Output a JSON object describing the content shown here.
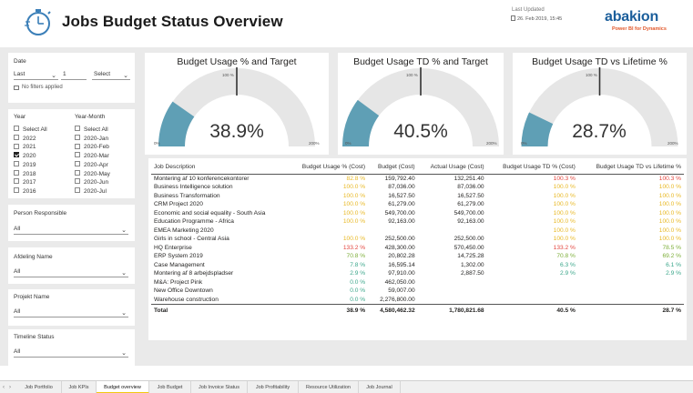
{
  "header": {
    "title": "Jobs Budget Status Overview",
    "last_updated_label": "Last Updated",
    "last_updated_value": "26. Feb 2019, 15:45",
    "brand": "abakion",
    "brand_sub": "Power BI for Dynamics"
  },
  "date_slicer": {
    "title": "Date",
    "mode": "Last",
    "count": "1",
    "unit": "Select",
    "filter_note": "No filters applied"
  },
  "year_slicer": {
    "title": "Year",
    "items": [
      {
        "label": "Select All",
        "checked": false
      },
      {
        "label": "2022",
        "checked": false
      },
      {
        "label": "2021",
        "checked": false
      },
      {
        "label": "2020",
        "checked": true
      },
      {
        "label": "2019",
        "checked": false
      },
      {
        "label": "2018",
        "checked": false
      },
      {
        "label": "2017",
        "checked": false
      },
      {
        "label": "2016",
        "checked": false
      }
    ]
  },
  "year_month_slicer": {
    "title": "Year-Month",
    "items": [
      "Select All",
      "2020-Jan",
      "2020-Feb",
      "2020-Mar",
      "2020-Apr",
      "2020-May",
      "2020-Jun",
      "2020-Jul"
    ]
  },
  "person_slicer": {
    "title": "Person Responsible",
    "value": "All"
  },
  "afdeling_slicer": {
    "title": "Afdeling Name",
    "value": "All"
  },
  "projekt_slicer": {
    "title": "Projekt Name",
    "value": "All"
  },
  "timeline_slicer": {
    "title": "Timeline Status",
    "value": "All"
  },
  "gauges": [
    {
      "title": "Budget Usage % and Target",
      "value_label": "38.9%",
      "value": 38.9,
      "min_label": "0%",
      "max_label": "200%",
      "target_label": "100 %",
      "target": 100
    },
    {
      "title": "Budget Usage TD % and Target",
      "value_label": "40.5%",
      "value": 40.5,
      "min_label": "0%",
      "max_label": "200%",
      "target_label": "100 %",
      "target": 100
    },
    {
      "title": "Budget Usage TD vs Lifetime %",
      "value_label": "28.7%",
      "value": 28.7,
      "min_label": "0%",
      "max_label": "200%",
      "target_label": "100 %",
      "target": 100
    }
  ],
  "colors": {
    "gauge_fill": "#5f9fb5",
    "gauge_track": "#e6e6e6",
    "yellow": "#e8b824",
    "green": "#7cae38",
    "red": "#e3453e",
    "teal": "#3aa68a"
  },
  "table": {
    "columns": [
      "Job Description",
      "Budget Usage % (Cost)",
      "Budget (Cost)",
      "Actual Usage (Cost)",
      "Budget Usage TD % (Cost)",
      "Budget Usage TD vs Lifetime %"
    ],
    "rows": [
      {
        "desc": "Montering af 10 konferencekontorer",
        "usage": "82.8 %",
        "usage_c": "yellow",
        "budget": "159,792.40",
        "actual": "132,251.40",
        "td": "100.3 %",
        "td_c": "red",
        "life": "100.3 %",
        "life_c": "red"
      },
      {
        "desc": "Business Intelligence solution",
        "usage": "100.0 %",
        "usage_c": "yellow",
        "budget": "87,036.00",
        "actual": "87,036.00",
        "td": "100.0 %",
        "td_c": "yellow",
        "life": "100.0 %",
        "life_c": "yellow"
      },
      {
        "desc": "Business Transformation",
        "usage": "100.0 %",
        "usage_c": "yellow",
        "budget": "16,527.50",
        "actual": "16,527.50",
        "td": "100.0 %",
        "td_c": "yellow",
        "life": "100.0 %",
        "life_c": "yellow"
      },
      {
        "desc": "CRM Project 2020",
        "usage": "100.0 %",
        "usage_c": "yellow",
        "budget": "61,279.00",
        "actual": "61,279.00",
        "td": "100.0 %",
        "td_c": "yellow",
        "life": "100.0 %",
        "life_c": "yellow"
      },
      {
        "desc": "Economic and social equality - South Asia",
        "usage": "100.0 %",
        "usage_c": "yellow",
        "budget": "549,700.00",
        "actual": "549,700.00",
        "td": "100.0 %",
        "td_c": "yellow",
        "life": "100.0 %",
        "life_c": "yellow"
      },
      {
        "desc": "Education Programme - Africa",
        "usage": "100.0 %",
        "usage_c": "yellow",
        "budget": "92,163.00",
        "actual": "92,163.00",
        "td": "100.0 %",
        "td_c": "yellow",
        "life": "100.0 %",
        "life_c": "yellow"
      },
      {
        "desc": "EMEA Marketing 2020",
        "usage": "",
        "usage_c": "",
        "budget": "",
        "actual": "",
        "td": "100.0 %",
        "td_c": "yellow",
        "life": "100.0 %",
        "life_c": "yellow"
      },
      {
        "desc": "Girls in school - Central Asia",
        "usage": "100.0 %",
        "usage_c": "yellow",
        "budget": "252,500.00",
        "actual": "252,500.00",
        "td": "100.0 %",
        "td_c": "yellow",
        "life": "100.0 %",
        "life_c": "yellow"
      },
      {
        "desc": "HQ Enterprise",
        "usage": "133.2 %",
        "usage_c": "red",
        "budget": "428,300.00",
        "actual": "570,450.00",
        "td": "133.2 %",
        "td_c": "red",
        "life": "78.5 %",
        "life_c": "green"
      },
      {
        "desc": "ERP System 2019",
        "usage": "70.8 %",
        "usage_c": "green",
        "budget": "20,802.28",
        "actual": "14,725.28",
        "td": "70.8 %",
        "td_c": "green",
        "life": "69.2 %",
        "life_c": "green"
      },
      {
        "desc": "Case Management",
        "usage": "7.8 %",
        "usage_c": "teal",
        "budget": "16,595.14",
        "actual": "1,302.00",
        "td": "6.3 %",
        "td_c": "teal",
        "life": "6.1 %",
        "life_c": "teal"
      },
      {
        "desc": "Montering af 8 arbejdspladser",
        "usage": "2.9 %",
        "usage_c": "teal",
        "budget": "97,910.00",
        "actual": "2,887.50",
        "td": "2.9 %",
        "td_c": "teal",
        "life": "2.9 %",
        "life_c": "teal"
      },
      {
        "desc": "M&A: Project Pink",
        "usage": "0.0 %",
        "usage_c": "teal",
        "budget": "462,050.00",
        "actual": "",
        "td": "",
        "td_c": "",
        "life": "",
        "life_c": ""
      },
      {
        "desc": "New Office Downtown",
        "usage": "0.0 %",
        "usage_c": "teal",
        "budget": "59,007.00",
        "actual": "",
        "td": "",
        "td_c": "",
        "life": "",
        "life_c": ""
      },
      {
        "desc": "Warehouse construction",
        "usage": "0.0 %",
        "usage_c": "teal",
        "budget": "2,276,800.00",
        "actual": "",
        "td": "",
        "td_c": "",
        "life": "",
        "life_c": ""
      }
    ],
    "total": {
      "desc": "Total",
      "usage": "38.9 %",
      "budget": "4,580,462.32",
      "actual": "1,780,821.68",
      "td": "40.5 %",
      "life": "28.7 %"
    }
  },
  "tabs": [
    {
      "label": "Job Portfolio",
      "active": false
    },
    {
      "label": "Job KPIs",
      "active": false
    },
    {
      "label": "Budget overview",
      "active": true
    },
    {
      "label": "Job Budget",
      "active": false
    },
    {
      "label": "Job Invoice Status",
      "active": false
    },
    {
      "label": "Job Profitability",
      "active": false
    },
    {
      "label": "Resource Utilization",
      "active": false
    },
    {
      "label": "Job Journal",
      "active": false
    }
  ]
}
